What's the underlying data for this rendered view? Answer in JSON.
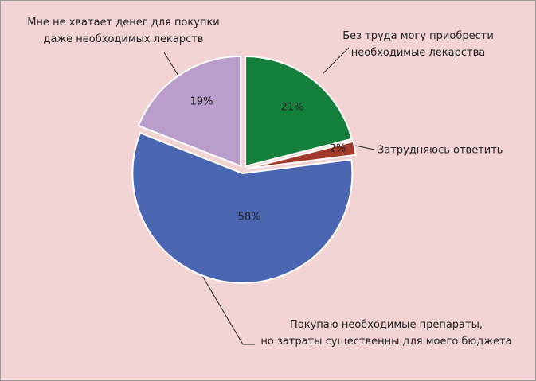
{
  "chart_data": {
    "type": "pie",
    "categories": [
      "Без труда могу приобрести\nнеобходимые лекарства",
      "Затрудняюсь ответить",
      "Покупаю необходимые препараты,\nно затраты существенны для моего бюджета",
      "Мне не хватает денег для покупки\nдаже необходимых лекарств"
    ],
    "values": [
      21,
      2,
      58,
      19
    ],
    "value_labels": [
      "21%",
      "2%",
      "58%",
      "19%"
    ],
    "colors": [
      "#14803c",
      "#a23a2b",
      "#4a66b1",
      "#b99dcb"
    ]
  }
}
